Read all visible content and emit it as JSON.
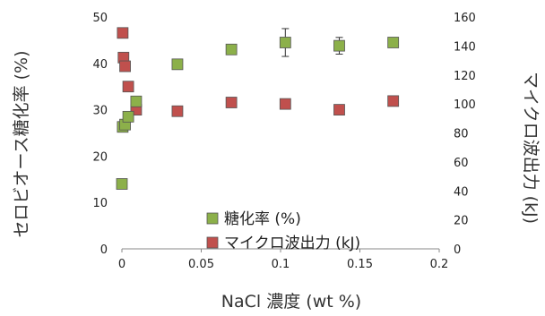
{
  "chart_data": {
    "type": "scatter",
    "xlabel": "NaCl 濃度 (wt %)",
    "ylabel_left": "セロビオース糖化率 (%)",
    "ylabel_right": "マイクロ波出力 (kJ)",
    "xlim": [
      0,
      0.2
    ],
    "ylim_left": [
      0,
      50
    ],
    "ylim_right": [
      0,
      160
    ],
    "x_ticks": [
      "0",
      "0.05",
      "0.1",
      "0.15",
      "0.2"
    ],
    "y_left_ticks": [
      "0",
      "10",
      "20",
      "30",
      "40",
      "50"
    ],
    "y_right_ticks": [
      "0",
      "20",
      "40",
      "60",
      "80",
      "100",
      "120",
      "140",
      "160"
    ],
    "grid": false,
    "legend_position": "center-right",
    "series": [
      {
        "name": "糖化率 (%)",
        "axis": "left",
        "color": "#8cb04a",
        "points": [
          {
            "x": 0.0,
            "y": 14.0
          },
          {
            "x": 0.0005,
            "y": 26.3
          },
          {
            "x": 0.002,
            "y": 26.8
          },
          {
            "x": 0.004,
            "y": 28.5
          },
          {
            "x": 0.009,
            "y": 31.8
          },
          {
            "x": 0.035,
            "y": 39.8,
            "err": 1.0
          },
          {
            "x": 0.069,
            "y": 43.0
          },
          {
            "x": 0.103,
            "y": 44.5,
            "err": 3.0
          },
          {
            "x": 0.137,
            "y": 43.8,
            "err": 1.8
          },
          {
            "x": 0.171,
            "y": 44.5
          }
        ]
      },
      {
        "name": "マイクロ波出力 (kJ)",
        "axis": "right",
        "color": "#c0504d",
        "points": [
          {
            "x": 0.0005,
            "y": 149
          },
          {
            "x": 0.001,
            "y": 132
          },
          {
            "x": 0.002,
            "y": 126
          },
          {
            "x": 0.004,
            "y": 112
          },
          {
            "x": 0.009,
            "y": 96
          },
          {
            "x": 0.035,
            "y": 95
          },
          {
            "x": 0.069,
            "y": 101
          },
          {
            "x": 0.103,
            "y": 100
          },
          {
            "x": 0.137,
            "y": 96
          },
          {
            "x": 0.171,
            "y": 102
          }
        ]
      }
    ]
  }
}
